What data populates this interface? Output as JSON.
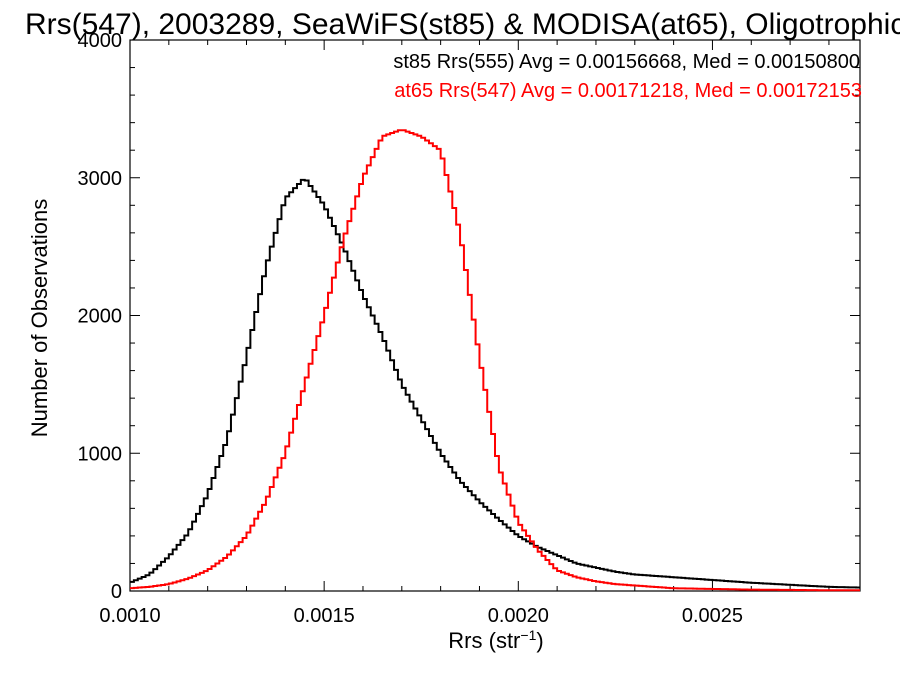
{
  "chart_data": {
    "type": "line",
    "title": "Rrs(547), 2003289, SeaWiFS(st85) & MODISA(at65), Oligotrophic",
    "xlabel": "Rrs (str",
    "xlabel_sup": "−1",
    "xlabel_close": ")",
    "ylabel": "Number of Observations",
    "xlim": [
      0.001,
      0.00288
    ],
    "ylim": [
      0,
      4000
    ],
    "xticks": [
      0.001,
      0.0015,
      0.002,
      0.0025
    ],
    "xtick_labels": [
      "0.0010",
      "0.0015",
      "0.0020",
      "0.0025"
    ],
    "yticks": [
      0,
      1000,
      2000,
      3000,
      4000
    ],
    "ytick_labels": [
      "0",
      "1000",
      "2000",
      "3000",
      "4000"
    ],
    "grid": false,
    "legend_position": "top-right",
    "series": [
      {
        "name": "st85",
        "color": "#000000",
        "annotation": "st85 Rrs(555) Avg = 0.00156668, Med = 0.00150800",
        "x": [
          0.001,
          0.00105,
          0.0011,
          0.00115,
          0.0012,
          0.00125,
          0.0013,
          0.00135,
          0.0014,
          0.00145,
          0.0015,
          0.00155,
          0.0016,
          0.00165,
          0.0017,
          0.00175,
          0.0018,
          0.00185,
          0.0019,
          0.00195,
          0.002,
          0.00205,
          0.0021,
          0.00215,
          0.0022,
          0.00225,
          0.0023,
          0.0024,
          0.0025,
          0.0026,
          0.0027,
          0.0028,
          0.00288
        ],
        "y": [
          60,
          120,
          250,
          420,
          700,
          1100,
          1700,
          2350,
          2850,
          3000,
          2800,
          2500,
          2150,
          1850,
          1500,
          1250,
          1000,
          800,
          650,
          520,
          400,
          320,
          260,
          200,
          170,
          140,
          120,
          100,
          80,
          60,
          45,
          30,
          25
        ]
      },
      {
        "name": "at65",
        "color": "#ff0000",
        "annotation": "at65 Rrs(547) Avg = 0.00171218, Med = 0.00172153",
        "x": [
          0.001,
          0.00105,
          0.0011,
          0.00115,
          0.0012,
          0.00125,
          0.0013,
          0.00135,
          0.0014,
          0.00145,
          0.0015,
          0.00155,
          0.0016,
          0.00165,
          0.0017,
          0.00175,
          0.0018,
          0.00185,
          0.0019,
          0.00195,
          0.002,
          0.00205,
          0.0021,
          0.00215,
          0.0022,
          0.00225,
          0.0023,
          0.0024,
          0.0025,
          0.0026,
          0.0027,
          0.0028,
          0.00288
        ],
        "y": [
          20,
          30,
          50,
          90,
          150,
          250,
          400,
          650,
          1000,
          1500,
          2000,
          2550,
          3000,
          3300,
          3350,
          3300,
          3200,
          2600,
          1700,
          900,
          500,
          300,
          150,
          100,
          70,
          50,
          40,
          20,
          15,
          10,
          8,
          5,
          5
        ]
      }
    ]
  }
}
